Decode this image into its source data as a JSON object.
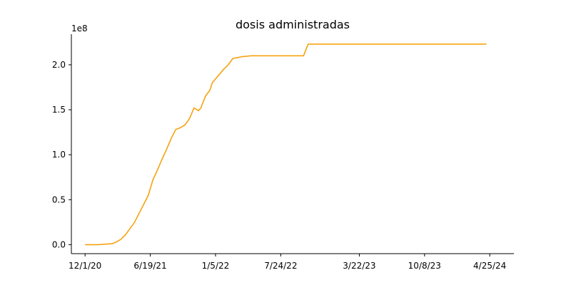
{
  "chart_data": {
    "type": "line",
    "title": "dosis administradas",
    "xlabel": "",
    "ylabel": "",
    "y_offset_label": "1e8",
    "x_tick_labels": [
      "12/1/20",
      "6/19/21",
      "1/5/22",
      "7/24/22",
      "3/22/23",
      "10/8/23",
      "4/25/24"
    ],
    "x_ticks": [
      "2020-12-01",
      "2021-06-19",
      "2022-01-05",
      "2022-07-24",
      "2023-03-22",
      "2023-10-08",
      "2024-04-25"
    ],
    "xlim": [
      "2020-10-20",
      "2024-07-08"
    ],
    "y_tick_labels": [
      "0.0",
      "0.5",
      "1.0",
      "1.5",
      "2.0"
    ],
    "y_ticks": [
      0,
      50000000,
      100000000,
      150000000,
      200000000
    ],
    "ylim": [
      -10000000,
      234000000
    ],
    "grid": false,
    "series": [
      {
        "color": "#f5a30f",
        "x": [
          "2020-12-01",
          "2020-12-20",
          "2021-01-10",
          "2021-01-31",
          "2021-02-21",
          "2021-03-07",
          "2021-03-21",
          "2021-04-04",
          "2021-04-18",
          "2021-05-02",
          "2021-05-16",
          "2021-05-30",
          "2021-06-13",
          "2021-06-27",
          "2021-07-11",
          "2021-07-25",
          "2021-08-08",
          "2021-08-22",
          "2021-09-05",
          "2021-09-19",
          "2021-10-03",
          "2021-10-17",
          "2021-10-31",
          "2021-11-14",
          "2021-11-21",
          "2021-12-05",
          "2021-12-19",
          "2021-12-26",
          "2022-01-02",
          "2022-01-16",
          "2022-01-30",
          "2022-02-13",
          "2022-02-27",
          "2022-03-13",
          "2022-03-27",
          "2022-04-10",
          "2022-04-24",
          "2022-05-08",
          "2022-05-22",
          "2022-06-05",
          "2022-06-19",
          "2022-07-03",
          "2022-07-17",
          "2022-07-31",
          "2022-08-21",
          "2022-09-11",
          "2022-10-02",
          "2022-10-16",
          "2024-04-15"
        ],
        "y": [
          0,
          0,
          0,
          500000,
          1000000,
          3000000,
          6000000,
          11000000,
          18000000,
          25000000,
          35000000,
          45000000,
          55000000,
          72000000,
          83000000,
          95000000,
          106000000,
          118000000,
          128000000,
          130000000,
          133000000,
          140000000,
          152000000,
          149000000,
          152000000,
          165000000,
          172000000,
          180000000,
          183000000,
          189000000,
          195000000,
          200000000,
          207000000,
          208000000,
          209000000,
          209500000,
          210000000,
          210000000,
          210000000,
          210000000,
          210000000,
          210000000,
          210000000,
          210000000,
          210000000,
          210000000,
          210000000,
          223000000,
          223000000
        ]
      }
    ]
  }
}
